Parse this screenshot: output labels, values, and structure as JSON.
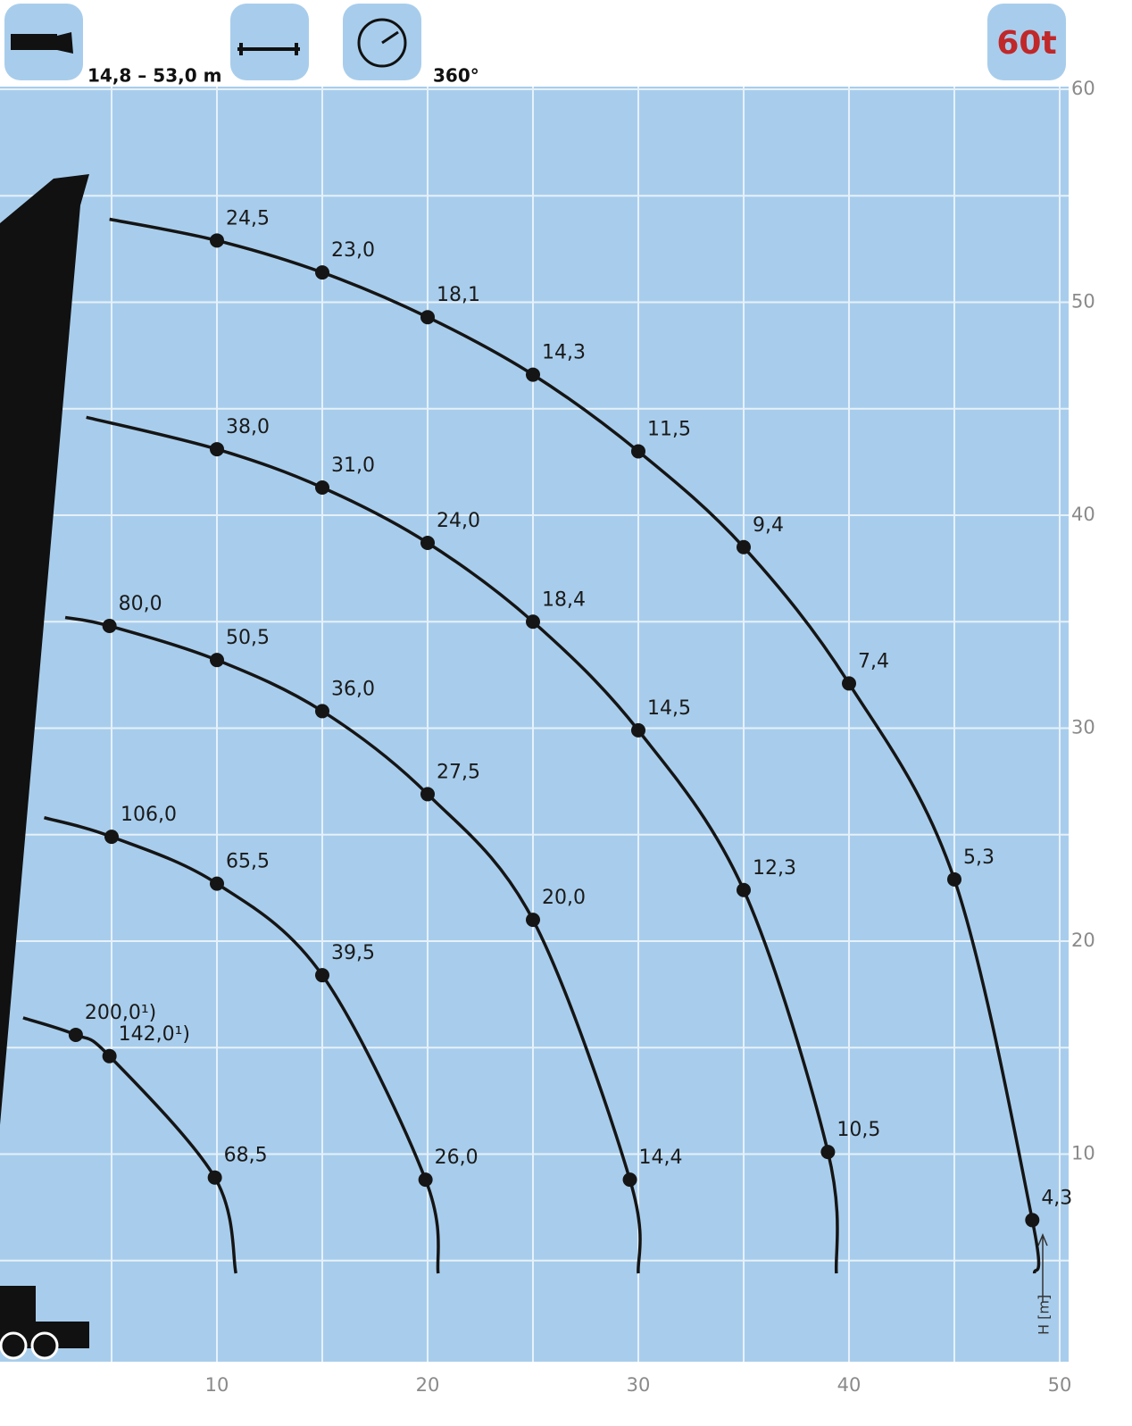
{
  "chart_data": {
    "type": "line",
    "boom_length": "14,8 – 53,0 m",
    "slewing": "360°",
    "capacity": "60t",
    "ylabel": "H [m]",
    "xlim": [
      0,
      50
    ],
    "ylim": [
      0,
      60
    ],
    "xticks": [
      10,
      20,
      30,
      40,
      50
    ],
    "yticks": [
      10,
      20,
      30,
      40,
      50,
      60
    ],
    "minor_xticks": [
      5,
      15,
      25,
      35,
      45
    ],
    "minor_yticks": [
      5,
      15,
      25,
      35,
      45,
      55
    ],
    "grid": true,
    "color": "#151515",
    "series": [
      {
        "x": [
          4.9,
          10,
          15,
          20,
          25,
          30,
          35,
          40,
          45,
          48.7,
          48.8
        ],
        "values": [
          53.9,
          52.9,
          51.4,
          49.3,
          46.6,
          43.0,
          38.5,
          32.1,
          22.9,
          6.9,
          4.4
        ],
        "point_labels": [
          null,
          "24,5",
          "23,0",
          "18,1",
          "14,3",
          "11,5",
          "9,4",
          "7,4",
          "5,3",
          "4,3",
          null
        ]
      },
      {
        "x": [
          3.8,
          10,
          15,
          20,
          25,
          30,
          35,
          39,
          39.4
        ],
        "values": [
          44.6,
          43.1,
          41.3,
          38.7,
          35.0,
          29.9,
          22.4,
          10.1,
          4.4
        ],
        "point_labels": [
          null,
          "38,0",
          "31,0",
          "24,0",
          "18,4",
          "14,5",
          "12,3",
          "10,5",
          null
        ]
      },
      {
        "x": [
          2.8,
          4.9,
          10,
          15,
          20,
          25,
          29.6,
          30
        ],
        "values": [
          35.2,
          34.8,
          33.2,
          30.8,
          26.9,
          21.0,
          8.8,
          4.4
        ],
        "point_labels": [
          null,
          "80,0",
          "50,5",
          "36,0",
          "27,5",
          "20,0",
          "14,4",
          null
        ]
      },
      {
        "x": [
          1.8,
          5,
          10,
          15,
          19.9,
          20.5
        ],
        "values": [
          25.8,
          24.9,
          22.7,
          18.4,
          8.8,
          4.4
        ],
        "point_labels": [
          null,
          "106,0",
          "65,5",
          "39,5",
          "26,0",
          null
        ]
      },
      {
        "x": [
          0.8,
          3.3,
          4.9,
          9.9,
          10.9
        ],
        "values": [
          16.4,
          15.6,
          14.6,
          8.9,
          4.4
        ],
        "point_labels": [
          null,
          "200,0¹)",
          "142,0¹)",
          "68,5",
          null
        ]
      }
    ]
  }
}
